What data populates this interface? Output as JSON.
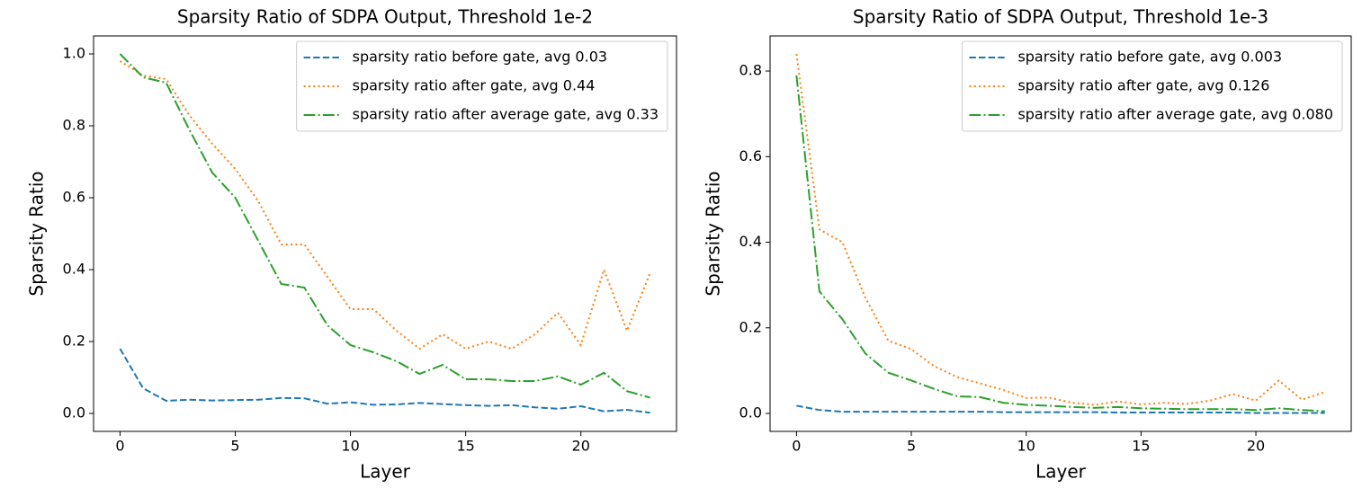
{
  "chart_data": [
    {
      "type": "line",
      "title": "Sparsity Ratio of SDPA Output, Threshold 1e-2",
      "xlabel": "Layer",
      "ylabel": "Sparsity Ratio",
      "x": [
        0,
        1,
        2,
        3,
        4,
        5,
        6,
        7,
        8,
        9,
        10,
        11,
        12,
        13,
        14,
        15,
        16,
        17,
        18,
        19,
        20,
        21,
        22,
        23
      ],
      "series": [
        {
          "name": "sparsity ratio before gate, avg 0.03",
          "color": "#1f77b4",
          "linestyle": "dashed",
          "values": [
            0.18,
            0.07,
            0.035,
            0.038,
            0.036,
            0.037,
            0.038,
            0.043,
            0.042,
            0.027,
            0.031,
            0.024,
            0.025,
            0.029,
            0.026,
            0.023,
            0.021,
            0.023,
            0.017,
            0.013,
            0.02,
            0.006,
            0.01,
            0.002
          ]
        },
        {
          "name": "sparsity ratio after gate, avg 0.44",
          "color": "#ff7f0e",
          "linestyle": "dotted",
          "values": [
            0.98,
            0.94,
            0.93,
            0.83,
            0.75,
            0.68,
            0.59,
            0.47,
            0.47,
            0.38,
            0.29,
            0.29,
            0.23,
            0.18,
            0.22,
            0.18,
            0.2,
            0.18,
            0.22,
            0.28,
            0.19,
            0.4,
            0.23,
            0.39
          ]
        },
        {
          "name": "sparsity ratio after average gate, avg 0.33",
          "color": "#2ca02c",
          "linestyle": "dashdot",
          "values": [
            1.0,
            0.935,
            0.92,
            0.79,
            0.67,
            0.6,
            0.48,
            0.36,
            0.35,
            0.245,
            0.19,
            0.17,
            0.145,
            0.11,
            0.135,
            0.095,
            0.095,
            0.09,
            0.09,
            0.103,
            0.08,
            0.113,
            0.062,
            0.044
          ]
        }
      ],
      "xlim": [
        -1.15,
        24.15
      ],
      "xticks": [
        0,
        5,
        10,
        15,
        20
      ],
      "ylim": [
        -0.05,
        1.05
      ],
      "yticks": [
        {
          "value": 0,
          "label": "0.0"
        },
        0.2,
        0.4,
        0.6,
        0.8,
        {
          "value": 1,
          "label": "1.0"
        }
      ],
      "legend": "upper right"
    },
    {
      "type": "line",
      "title": "Sparsity Ratio of SDPA Output, Threshold 1e-3",
      "xlabel": "Layer",
      "ylabel": "Sparsity Ratio",
      "x": [
        0,
        1,
        2,
        3,
        4,
        5,
        6,
        7,
        8,
        9,
        10,
        11,
        12,
        13,
        14,
        15,
        16,
        17,
        18,
        19,
        20,
        21,
        22,
        23
      ],
      "series": [
        {
          "name": "sparsity ratio before gate, avg 0.003",
          "color": "#1f77b4",
          "linestyle": "dashed",
          "values": [
            0.018,
            0.008,
            0.004,
            0.004,
            0.004,
            0.004,
            0.004,
            0.004,
            0.004,
            0.003,
            0.003,
            0.003,
            0.003,
            0.003,
            0.002,
            0.002,
            0.002,
            0.002,
            0.002,
            0.002,
            0.001,
            0.001,
            0.001,
            0.001
          ]
        },
        {
          "name": "sparsity ratio after gate, avg 0.126",
          "color": "#ff7f0e",
          "linestyle": "dotted",
          "values": [
            0.84,
            0.43,
            0.4,
            0.27,
            0.17,
            0.15,
            0.11,
            0.085,
            0.07,
            0.055,
            0.036,
            0.037,
            0.025,
            0.02,
            0.028,
            0.021,
            0.025,
            0.022,
            0.03,
            0.045,
            0.03,
            0.077,
            0.032,
            0.05
          ]
        },
        {
          "name": "sparsity ratio after average gate, avg 0.080",
          "color": "#2ca02c",
          "linestyle": "dashdot",
          "values": [
            0.79,
            0.285,
            0.22,
            0.14,
            0.095,
            0.077,
            0.057,
            0.04,
            0.038,
            0.025,
            0.02,
            0.018,
            0.015,
            0.013,
            0.015,
            0.012,
            0.011,
            0.01,
            0.01,
            0.01,
            0.008,
            0.012,
            0.008,
            0.005
          ]
        }
      ],
      "xlim": [
        -1.15,
        24.15
      ],
      "xticks": [
        0,
        5,
        10,
        15,
        20
      ],
      "ylim": [
        -0.042,
        0.882
      ],
      "yticks": [
        {
          "value": 0,
          "label": "0.0"
        },
        0.2,
        0.4,
        0.6,
        0.8
      ],
      "legend": "upper right"
    }
  ]
}
